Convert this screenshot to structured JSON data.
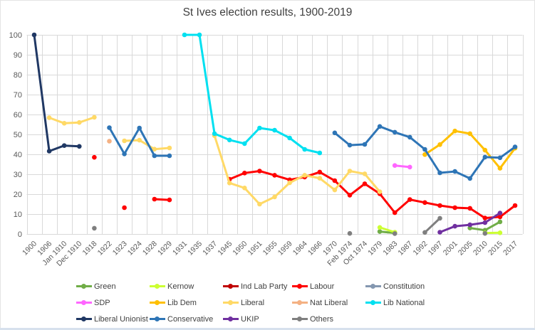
{
  "window": {
    "background": "#FFFFFF",
    "frame_border_color": "#E4E4E4",
    "bottom_strip_color": "#D7E1ED"
  },
  "chart_data": {
    "type": "line",
    "title": "St Ives election results, 1900-2019",
    "title_color": "#404040",
    "grid": true,
    "grid_color": "#D9D9D9",
    "axis_label_color": "#595959",
    "legend_position": "bottom",
    "ylim": [
      0,
      100
    ],
    "ytick_step": 10,
    "yticks": [
      0,
      10,
      20,
      30,
      40,
      50,
      60,
      70,
      80,
      90,
      100
    ],
    "categories": [
      "1900",
      "1906",
      "Jan 1910",
      "Dec 1910",
      "1918",
      "1922",
      "1923",
      "1924",
      "1928",
      "1929",
      "1931",
      "1935",
      "1937",
      "1945",
      "1950",
      "1951",
      "1955",
      "1959",
      "1964",
      "1966",
      "1970",
      "Feb 1974",
      "Oct 1974",
      "1979",
      "1983",
      "1987",
      "1992",
      "1997",
      "2001",
      "2005",
      "2010",
      "2015",
      "2017"
    ],
    "legend_rows": [
      [
        "Green",
        "Kernow",
        "Ind Lab Party",
        "Labour",
        "Constitution"
      ],
      [
        "SDP",
        "Lib Dem",
        "Liberal",
        "Nat Liberal",
        "Lib National"
      ],
      [
        "Liberal Unionist",
        "Conservative",
        "UKIP",
        "Others"
      ]
    ],
    "series": [
      {
        "name": "Green",
        "color": "#70AD47",
        "values": [
          null,
          null,
          null,
          null,
          null,
          null,
          null,
          null,
          null,
          null,
          null,
          null,
          null,
          null,
          null,
          null,
          null,
          null,
          null,
          null,
          null,
          null,
          null,
          1.2,
          0.5,
          null,
          null,
          null,
          null,
          3.0,
          1.9,
          6.1,
          null
        ]
      },
      {
        "name": "Kernow",
        "color": "#CCFF33",
        "values": [
          null,
          null,
          null,
          null,
          null,
          null,
          null,
          null,
          null,
          null,
          null,
          null,
          null,
          null,
          null,
          null,
          null,
          null,
          null,
          null,
          null,
          null,
          null,
          3.3,
          0.9,
          null,
          null,
          null,
          null,
          null,
          0.5,
          0.6,
          null
        ]
      },
      {
        "name": "Ind Lab Party",
        "color": "#C00000",
        "values": [
          null,
          null,
          null,
          null,
          null,
          null,
          null,
          null,
          null,
          null,
          null,
          null,
          null,
          null,
          null,
          null,
          null,
          null,
          null,
          null,
          null,
          null,
          null,
          null,
          null,
          null,
          null,
          null,
          null,
          null,
          null,
          null,
          null
        ]
      },
      {
        "name": "Labour",
        "color": "#FF0000",
        "values": [
          null,
          null,
          null,
          null,
          38.5,
          null,
          13.2,
          null,
          17.5,
          17.1,
          null,
          null,
          null,
          27.5,
          30.6,
          31.6,
          29.5,
          27.2,
          28.6,
          31.1,
          26.8,
          19.5,
          25.2,
          20.2,
          10.7,
          17.3,
          15.8,
          14.3,
          13.2,
          12.9,
          8.0,
          8.6,
          14.3
        ]
      },
      {
        "name": "Constitution",
        "color": "#8497B0",
        "values": [
          null,
          null,
          null,
          null,
          null,
          null,
          null,
          null,
          null,
          null,
          null,
          null,
          null,
          null,
          null,
          null,
          null,
          null,
          null,
          null,
          null,
          null,
          null,
          null,
          null,
          null,
          null,
          null,
          null,
          null,
          null,
          null,
          null
        ]
      },
      {
        "name": "SDP",
        "color": "#FF66FF",
        "values": [
          null,
          null,
          null,
          null,
          null,
          null,
          null,
          null,
          null,
          null,
          null,
          null,
          null,
          null,
          null,
          null,
          null,
          null,
          null,
          null,
          null,
          null,
          null,
          null,
          34.4,
          33.6,
          null,
          null,
          null,
          null,
          null,
          null,
          null
        ]
      },
      {
        "name": "Lib Dem",
        "color": "#FFC000",
        "values": [
          null,
          null,
          null,
          null,
          null,
          null,
          null,
          null,
          null,
          null,
          null,
          null,
          null,
          null,
          null,
          null,
          null,
          null,
          null,
          null,
          null,
          null,
          null,
          null,
          null,
          null,
          39.9,
          44.9,
          51.7,
          50.4,
          42.1,
          33.0,
          43.1
        ]
      },
      {
        "name": "Liberal",
        "color": "#FFD966",
        "values": [
          null,
          58.4,
          55.6,
          56.0,
          58.6,
          null,
          46.8,
          47.1,
          42.6,
          43.2,
          null,
          null,
          49.4,
          25.6,
          23.1,
          15.0,
          18.6,
          25.7,
          29.5,
          28.0,
          22.1,
          31.6,
          30.2,
          21.2,
          null,
          null,
          null,
          null,
          null,
          null,
          null,
          null,
          null
        ]
      },
      {
        "name": "Nat Liberal",
        "color": "#F4B183",
        "values": [
          null,
          null,
          null,
          null,
          null,
          46.6,
          null,
          null,
          null,
          null,
          null,
          null,
          null,
          null,
          null,
          null,
          null,
          null,
          null,
          null,
          null,
          null,
          null,
          null,
          null,
          null,
          null,
          null,
          null,
          null,
          null,
          null,
          null
        ]
      },
      {
        "name": "Lib National",
        "color": "#00E0F0",
        "values": [
          null,
          null,
          null,
          null,
          null,
          null,
          null,
          null,
          null,
          null,
          100,
          100,
          50.4,
          47.2,
          45.4,
          53.2,
          52.1,
          48.2,
          42.5,
          40.7,
          null,
          null,
          null,
          null,
          null,
          null,
          null,
          null,
          null,
          null,
          null,
          null,
          null
        ]
      },
      {
        "name": "Liberal Unionist",
        "color": "#203864",
        "values": [
          100,
          41.6,
          44.4,
          44.0,
          null,
          null,
          null,
          null,
          null,
          null,
          null,
          null,
          null,
          null,
          null,
          null,
          null,
          null,
          null,
          null,
          null,
          null,
          null,
          null,
          null,
          null,
          null,
          null,
          null,
          null,
          null,
          null,
          null
        ]
      },
      {
        "name": "Conservative",
        "color": "#2E75B6",
        "values": [
          null,
          null,
          null,
          null,
          null,
          53.4,
          40.2,
          53.2,
          39.3,
          39.3,
          null,
          null,
          null,
          null,
          null,
          null,
          null,
          null,
          null,
          null,
          50.8,
          44.6,
          45.0,
          54.0,
          51.1,
          48.6,
          42.5,
          30.7,
          31.4,
          27.9,
          38.6,
          38.3,
          43.7
        ]
      },
      {
        "name": "UKIP",
        "color": "#7030A0",
        "values": [
          null,
          null,
          null,
          null,
          null,
          null,
          null,
          null,
          null,
          null,
          null,
          null,
          null,
          null,
          null,
          null,
          null,
          null,
          null,
          null,
          null,
          null,
          null,
          null,
          null,
          null,
          null,
          0.9,
          3.9,
          4.6,
          5.7,
          10.5,
          null
        ]
      },
      {
        "name": "Others",
        "color": "#7F7F7F",
        "values": [
          null,
          null,
          null,
          null,
          2.9,
          null,
          null,
          null,
          null,
          null,
          null,
          null,
          null,
          null,
          null,
          null,
          null,
          null,
          null,
          null,
          null,
          0.3,
          null,
          null,
          0.2,
          null,
          0.8,
          7.9,
          null,
          null,
          0.3,
          null,
          null
        ]
      }
    ]
  }
}
